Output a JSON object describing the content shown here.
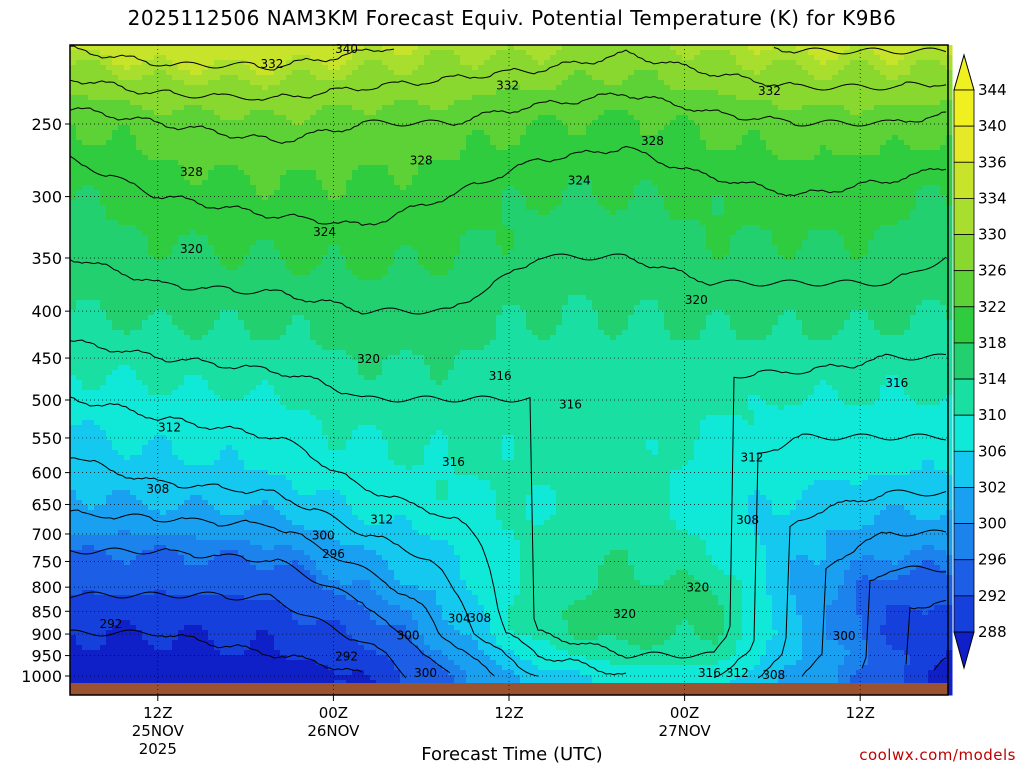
{
  "title": "2025112506 NAM3KM Forecast Equiv. Potential Temperature (K) for K9B6",
  "xlabel": "Forecast Time (UTC)",
  "credit": "coolwx.com/models",
  "chart_data": {
    "type": "contour-filled time-height cross section",
    "variable": "Equivalent potential temperature (K)",
    "y_axis": {
      "orientation": "pressure decreasing upward",
      "ticks": [
        250,
        300,
        350,
        400,
        450,
        500,
        550,
        600,
        650,
        700,
        750,
        800,
        850,
        900,
        950,
        1000
      ],
      "range": [
        200,
        1020
      ]
    },
    "x_axis": {
      "ticks": [
        {
          "hour": 12,
          "lines": [
            "12Z",
            "25NOV",
            "2025"
          ]
        },
        {
          "hour": 24,
          "lines": [
            "00Z",
            "26NOV"
          ]
        },
        {
          "hour": 36,
          "lines": [
            "12Z"
          ]
        },
        {
          "hour": 48,
          "lines": [
            "00Z",
            "27NOV"
          ]
        },
        {
          "hour": 60,
          "lines": [
            "12Z"
          ]
        }
      ],
      "range_hours": [
        6,
        66
      ]
    },
    "colorbar": {
      "levels": [
        344,
        340,
        336,
        334,
        330,
        326,
        322,
        318,
        314,
        310,
        306,
        302,
        300,
        296,
        292,
        288
      ],
      "colors": [
        "#f0f020",
        "#e6ea26",
        "#c8e42a",
        "#a8de2e",
        "#88d830",
        "#5cd236",
        "#30cc40",
        "#22d070",
        "#1adfa2",
        "#10e8d8",
        "#14c8f0",
        "#1aa0f0",
        "#1c82ec",
        "#1c5ee6",
        "#1640dc",
        "#1020c8"
      ]
    },
    "profiles": [
      {
        "hour": 6,
        "values": [
          {
            "p": 1000,
            "v": 288
          },
          {
            "p": 950,
            "v": 291
          },
          {
            "p": 900,
            "v": 292
          },
          {
            "p": 850,
            "v": 294
          },
          {
            "p": 800,
            "v": 297
          },
          {
            "p": 750,
            "v": 299
          },
          {
            "p": 700,
            "v": 302
          },
          {
            "p": 650,
            "v": 305
          },
          {
            "p": 600,
            "v": 307
          },
          {
            "p": 550,
            "v": 309
          },
          {
            "p": 500,
            "v": 312
          },
          {
            "p": 450,
            "v": 315
          },
          {
            "p": 400,
            "v": 318
          },
          {
            "p": 350,
            "v": 320
          },
          {
            "p": 300,
            "v": 322
          },
          {
            "p": 250,
            "v": 326
          },
          {
            "p": 200,
            "v": 338
          }
        ]
      },
      {
        "hour": 12,
        "values": [
          {
            "p": 1000,
            "v": 288
          },
          {
            "p": 950,
            "v": 291
          },
          {
            "p": 900,
            "v": 292
          },
          {
            "p": 850,
            "v": 294
          },
          {
            "p": 800,
            "v": 297
          },
          {
            "p": 750,
            "v": 299
          },
          {
            "p": 700,
            "v": 302
          },
          {
            "p": 650,
            "v": 306
          },
          {
            "p": 600,
            "v": 309
          },
          {
            "p": 550,
            "v": 311
          },
          {
            "p": 500,
            "v": 313
          },
          {
            "p": 450,
            "v": 316
          },
          {
            "p": 400,
            "v": 319
          },
          {
            "p": 350,
            "v": 321
          },
          {
            "p": 300,
            "v": 324
          },
          {
            "p": 250,
            "v": 328
          },
          {
            "p": 200,
            "v": 340
          }
        ]
      },
      {
        "hour": 20,
        "values": [
          {
            "p": 1000,
            "v": 289
          },
          {
            "p": 950,
            "v": 292
          },
          {
            "p": 900,
            "v": 293
          },
          {
            "p": 850,
            "v": 295
          },
          {
            "p": 800,
            "v": 297
          },
          {
            "p": 750,
            "v": 300
          },
          {
            "p": 700,
            "v": 303
          },
          {
            "p": 650,
            "v": 307
          },
          {
            "p": 600,
            "v": 310
          },
          {
            "p": 550,
            "v": 312
          },
          {
            "p": 500,
            "v": 314
          },
          {
            "p": 450,
            "v": 317
          },
          {
            "p": 400,
            "v": 319
          },
          {
            "p": 350,
            "v": 322
          },
          {
            "p": 300,
            "v": 325
          },
          {
            "p": 250,
            "v": 329
          },
          {
            "p": 200,
            "v": 340
          }
        ]
      },
      {
        "hour": 26,
        "values": [
          {
            "p": 1000,
            "v": 292
          },
          {
            "p": 950,
            "v": 294
          },
          {
            "p": 900,
            "v": 297
          },
          {
            "p": 850,
            "v": 299
          },
          {
            "p": 800,
            "v": 302
          },
          {
            "p": 750,
            "v": 305
          },
          {
            "p": 700,
            "v": 308
          },
          {
            "p": 650,
            "v": 311
          },
          {
            "p": 600,
            "v": 313
          },
          {
            "p": 550,
            "v": 314
          },
          {
            "p": 500,
            "v": 316
          },
          {
            "p": 450,
            "v": 318
          },
          {
            "p": 400,
            "v": 320
          },
          {
            "p": 350,
            "v": 323
          },
          {
            "p": 300,
            "v": 325
          },
          {
            "p": 250,
            "v": 328
          },
          {
            "p": 200,
            "v": 338
          }
        ]
      },
      {
        "hour": 32,
        "values": [
          {
            "p": 1000,
            "v": 300
          },
          {
            "p": 950,
            "v": 302
          },
          {
            "p": 900,
            "v": 305
          },
          {
            "p": 850,
            "v": 306
          },
          {
            "p": 800,
            "v": 308
          },
          {
            "p": 750,
            "v": 309
          },
          {
            "p": 700,
            "v": 311
          },
          {
            "p": 650,
            "v": 313
          },
          {
            "p": 600,
            "v": 314
          },
          {
            "p": 550,
            "v": 315
          },
          {
            "p": 500,
            "v": 316
          },
          {
            "p": 450,
            "v": 318
          },
          {
            "p": 400,
            "v": 320
          },
          {
            "p": 350,
            "v": 322
          },
          {
            "p": 300,
            "v": 324
          },
          {
            "p": 250,
            "v": 328
          },
          {
            "p": 200,
            "v": 336
          }
        ]
      },
      {
        "hour": 38,
        "values": [
          {
            "p": 1000,
            "v": 308
          },
          {
            "p": 950,
            "v": 312
          },
          {
            "p": 900,
            "v": 316
          },
          {
            "p": 850,
            "v": 317
          },
          {
            "p": 800,
            "v": 316
          },
          {
            "p": 750,
            "v": 316
          },
          {
            "p": 700,
            "v": 315
          },
          {
            "p": 650,
            "v": 314
          },
          {
            "p": 600,
            "v": 315
          },
          {
            "p": 550,
            "v": 315
          },
          {
            "p": 500,
            "v": 316
          },
          {
            "p": 450,
            "v": 317
          },
          {
            "p": 400,
            "v": 318
          },
          {
            "p": 350,
            "v": 320
          },
          {
            "p": 300,
            "v": 322
          },
          {
            "p": 250,
            "v": 326
          },
          {
            "p": 200,
            "v": 336
          }
        ]
      },
      {
        "hour": 44,
        "values": [
          {
            "p": 1000,
            "v": 312
          },
          {
            "p": 950,
            "v": 316
          },
          {
            "p": 900,
            "v": 320
          },
          {
            "p": 850,
            "v": 320
          },
          {
            "p": 800,
            "v": 319
          },
          {
            "p": 750,
            "v": 318
          },
          {
            "p": 700,
            "v": 317
          },
          {
            "p": 650,
            "v": 316
          },
          {
            "p": 600,
            "v": 316
          },
          {
            "p": 550,
            "v": 316
          },
          {
            "p": 500,
            "v": 316
          },
          {
            "p": 450,
            "v": 317
          },
          {
            "p": 400,
            "v": 318
          },
          {
            "p": 350,
            "v": 320
          },
          {
            "p": 300,
            "v": 322
          },
          {
            "p": 250,
            "v": 325
          },
          {
            "p": 200,
            "v": 334
          }
        ]
      },
      {
        "hour": 50,
        "values": [
          {
            "p": 1000,
            "v": 312
          },
          {
            "p": 950,
            "v": 316
          },
          {
            "p": 900,
            "v": 318
          },
          {
            "p": 850,
            "v": 319
          },
          {
            "p": 800,
            "v": 318
          },
          {
            "p": 750,
            "v": 315
          },
          {
            "p": 700,
            "v": 313
          },
          {
            "p": 650,
            "v": 312
          },
          {
            "p": 600,
            "v": 312
          },
          {
            "p": 550,
            "v": 313
          },
          {
            "p": 500,
            "v": 315
          },
          {
            "p": 450,
            "v": 317
          },
          {
            "p": 400,
            "v": 319
          },
          {
            "p": 350,
            "v": 321
          },
          {
            "p": 300,
            "v": 323
          },
          {
            "p": 250,
            "v": 327
          },
          {
            "p": 200,
            "v": 336
          }
        ]
      },
      {
        "hour": 56,
        "values": [
          {
            "p": 1000,
            "v": 304
          },
          {
            "p": 950,
            "v": 306
          },
          {
            "p": 900,
            "v": 306
          },
          {
            "p": 850,
            "v": 305
          },
          {
            "p": 800,
            "v": 305
          },
          {
            "p": 750,
            "v": 306
          },
          {
            "p": 700,
            "v": 307
          },
          {
            "p": 650,
            "v": 309
          },
          {
            "p": 600,
            "v": 311
          },
          {
            "p": 550,
            "v": 312
          },
          {
            "p": 500,
            "v": 314
          },
          {
            "p": 450,
            "v": 317
          },
          {
            "p": 400,
            "v": 319
          },
          {
            "p": 350,
            "v": 321
          },
          {
            "p": 300,
            "v": 324
          },
          {
            "p": 250,
            "v": 328
          },
          {
            "p": 200,
            "v": 338
          }
        ]
      },
      {
        "hour": 62,
        "values": [
          {
            "p": 1000,
            "v": 298
          },
          {
            "p": 950,
            "v": 298
          },
          {
            "p": 900,
            "v": 296
          },
          {
            "p": 850,
            "v": 296
          },
          {
            "p": 800,
            "v": 298
          },
          {
            "p": 750,
            "v": 301
          },
          {
            "p": 700,
            "v": 304
          },
          {
            "p": 650,
            "v": 307
          },
          {
            "p": 600,
            "v": 310
          },
          {
            "p": 550,
            "v": 312
          },
          {
            "p": 500,
            "v": 314
          },
          {
            "p": 450,
            "v": 316
          },
          {
            "p": 400,
            "v": 319
          },
          {
            "p": 350,
            "v": 321
          },
          {
            "p": 300,
            "v": 323
          },
          {
            "p": 250,
            "v": 328
          },
          {
            "p": 200,
            "v": 338
          }
        ]
      },
      {
        "hour": 66,
        "values": [
          {
            "p": 1000,
            "v": 290
          },
          {
            "p": 950,
            "v": 292
          },
          {
            "p": 900,
            "v": 293
          },
          {
            "p": 850,
            "v": 295
          },
          {
            "p": 800,
            "v": 298
          },
          {
            "p": 750,
            "v": 301
          },
          {
            "p": 700,
            "v": 304
          },
          {
            "p": 650,
            "v": 307
          },
          {
            "p": 600,
            "v": 310
          },
          {
            "p": 550,
            "v": 312
          },
          {
            "p": 500,
            "v": 314
          },
          {
            "p": 450,
            "v": 316
          },
          {
            "p": 400,
            "v": 318
          },
          {
            "p": 350,
            "v": 320
          },
          {
            "p": 300,
            "v": 322
          },
          {
            "p": 250,
            "v": 327
          },
          {
            "p": 200,
            "v": 338
          }
        ]
      }
    ],
    "contour_labels": [
      {
        "text": "340",
        "hour": 24.9,
        "p": 207
      },
      {
        "text": "332",
        "hour": 19.8,
        "p": 215
      },
      {
        "text": "332",
        "hour": 35.9,
        "p": 227
      },
      {
        "text": "332",
        "hour": 53.8,
        "p": 230
      },
      {
        "text": "328",
        "hour": 45.8,
        "p": 261
      },
      {
        "text": "328",
        "hour": 14.3,
        "p": 282
      },
      {
        "text": "328",
        "hour": 30.0,
        "p": 274
      },
      {
        "text": "324",
        "hour": 40.8,
        "p": 288
      },
      {
        "text": "324",
        "hour": 23.4,
        "p": 328
      },
      {
        "text": "320",
        "hour": 14.3,
        "p": 342
      },
      {
        "text": "320",
        "hour": 48.8,
        "p": 389
      },
      {
        "text": "320",
        "hour": 26.4,
        "p": 451
      },
      {
        "text": "316",
        "hour": 35.4,
        "p": 471
      },
      {
        "text": "316",
        "hour": 40.2,
        "p": 506
      },
      {
        "text": "316",
        "hour": 62.5,
        "p": 479
      },
      {
        "text": "316",
        "hour": 32.2,
        "p": 584
      },
      {
        "text": "312",
        "hour": 12.8,
        "p": 536
      },
      {
        "text": "312",
        "hour": 52.6,
        "p": 578
      },
      {
        "text": "312",
        "hour": 27.3,
        "p": 675
      },
      {
        "text": "308",
        "hour": 12.0,
        "p": 625
      },
      {
        "text": "308",
        "hour": 52.3,
        "p": 676
      },
      {
        "text": "300",
        "hour": 23.3,
        "p": 703
      },
      {
        "text": "296",
        "hour": 24.0,
        "p": 736
      },
      {
        "text": "292",
        "hour": 8.8,
        "p": 878
      },
      {
        "text": "320",
        "hour": 48.9,
        "p": 801
      },
      {
        "text": "320",
        "hour": 43.9,
        "p": 856
      },
      {
        "text": "304",
        "hour": 32.6,
        "p": 866
      },
      {
        "text": "308",
        "hour": 34.0,
        "p": 864
      },
      {
        "text": "300",
        "hour": 29.1,
        "p": 903
      },
      {
        "text": "300",
        "hour": 58.9,
        "p": 904
      },
      {
        "text": "292",
        "hour": 24.9,
        "p": 952
      },
      {
        "text": "300",
        "hour": 30.3,
        "p": 993
      },
      {
        "text": "316",
        "hour": 49.7,
        "p": 993
      },
      {
        "text": "312",
        "hour": 51.6,
        "p": 993
      },
      {
        "text": "308",
        "hour": 54.1,
        "p": 997
      }
    ]
  }
}
